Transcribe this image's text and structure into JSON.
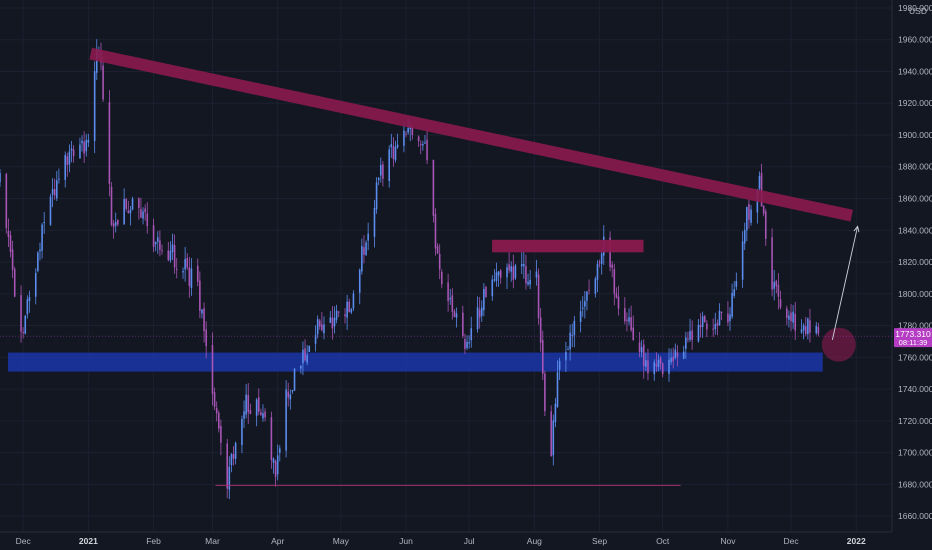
{
  "chart_data": {
    "type": "candlestick",
    "title": "",
    "currency_label": "USD",
    "y_axis": {
      "position": "right",
      "range": [
        1650,
        1985
      ],
      "ticks": [
        "1980.000",
        "1960.000",
        "1940.000",
        "1920.000",
        "1900.000",
        "1880.000",
        "1860.000",
        "1840.000",
        "1820.000",
        "1800.000",
        "1780.000",
        "1760.000",
        "1740.000",
        "1720.000",
        "1700.000",
        "1680.000",
        "1660.000"
      ],
      "tick_values": [
        1980,
        1960,
        1940,
        1920,
        1900,
        1880,
        1860,
        1840,
        1820,
        1800,
        1780,
        1760,
        1740,
        1720,
        1700,
        1680,
        1660
      ]
    },
    "x_axis": {
      "range": [
        "2020-11-20",
        "2022-01-18"
      ],
      "ticks": [
        {
          "label": "Dec",
          "date": "2020-12-01",
          "bold": false
        },
        {
          "label": "2021",
          "date": "2021-01-01",
          "bold": true
        },
        {
          "label": "Feb",
          "date": "2021-02-01",
          "bold": false
        },
        {
          "label": "Mar",
          "date": "2021-03-01",
          "bold": false
        },
        {
          "label": "Apr",
          "date": "2021-04-01",
          "bold": false
        },
        {
          "label": "May",
          "date": "2021-05-01",
          "bold": false
        },
        {
          "label": "Jun",
          "date": "2021-06-01",
          "bold": false
        },
        {
          "label": "Jul",
          "date": "2021-07-01",
          "bold": false
        },
        {
          "label": "Aug",
          "date": "2021-08-01",
          "bold": false
        },
        {
          "label": "Sep",
          "date": "2021-09-01",
          "bold": false
        },
        {
          "label": "Oct",
          "date": "2021-10-01",
          "bold": false
        },
        {
          "label": "Nov",
          "date": "2021-11-01",
          "bold": false
        },
        {
          "label": "Dec",
          "date": "2021-12-01",
          "bold": false
        },
        {
          "label": "2022",
          "date": "2022-01-01",
          "bold": true
        }
      ]
    },
    "price_series_anchors": [
      [
        "2020-11-20",
        1870
      ],
      [
        "2020-11-30",
        1776
      ],
      [
        "2020-12-10",
        1838
      ],
      [
        "2020-12-20",
        1880
      ],
      [
        "2020-12-31",
        1893
      ],
      [
        "2021-01-06",
        1958
      ],
      [
        "2021-01-12",
        1845
      ],
      [
        "2021-01-22",
        1860
      ],
      [
        "2021-02-01",
        1835
      ],
      [
        "2021-02-12",
        1822
      ],
      [
        "2021-02-22",
        1805
      ],
      [
        "2021-03-08",
        1680
      ],
      [
        "2021-03-16",
        1730
      ],
      [
        "2021-03-25",
        1728
      ],
      [
        "2021-03-31",
        1682
      ],
      [
        "2021-04-05",
        1735
      ],
      [
        "2021-04-20",
        1780
      ],
      [
        "2021-05-05",
        1790
      ],
      [
        "2021-05-20",
        1875
      ],
      [
        "2021-06-01",
        1905
      ],
      [
        "2021-06-10",
        1890
      ],
      [
        "2021-06-17",
        1812
      ],
      [
        "2021-06-29",
        1766
      ],
      [
        "2021-07-10",
        1806
      ],
      [
        "2021-07-20",
        1815
      ],
      [
        "2021-08-02",
        1812
      ],
      [
        "2021-08-08",
        1688
      ],
      [
        "2021-08-13",
        1760
      ],
      [
        "2021-08-25",
        1790
      ],
      [
        "2021-09-03",
        1832
      ],
      [
        "2021-09-10",
        1795
      ],
      [
        "2021-09-25",
        1750
      ],
      [
        "2021-10-05",
        1760
      ],
      [
        "2021-10-20",
        1780
      ],
      [
        "2021-11-01",
        1785
      ],
      [
        "2021-11-10",
        1850
      ],
      [
        "2021-11-16",
        1870
      ],
      [
        "2021-11-22",
        1805
      ],
      [
        "2021-12-01",
        1782
      ],
      [
        "2021-12-10",
        1780
      ],
      [
        "2021-12-14",
        1773
      ]
    ],
    "last_price": {
      "value": 1773.31,
      "label": "1773.310",
      "countdown": "08:11:39"
    },
    "annotations": [
      {
        "type": "trendline",
        "name": "descending-resistance",
        "points": [
          [
            "2021-01-04",
            1955
          ],
          [
            "2021-12-27",
            1853
          ]
        ],
        "color": "#8a1a4f"
      },
      {
        "type": "zone",
        "name": "support-zone",
        "x": [
          "2020-11-20",
          "2021-12-27"
        ],
        "y": [
          1751,
          1763
        ],
        "color": "#1b36a8"
      },
      {
        "type": "zone",
        "name": "range-resistance",
        "x": [
          "2021-07-10",
          "2021-09-20"
        ],
        "y": [
          1828,
          1834
        ],
        "color": "#8a1a4f"
      },
      {
        "type": "hline",
        "name": "march-low-line",
        "x": [
          "2021-03-01",
          "2021-09-30"
        ],
        "y": 1680,
        "color": "#a0306c"
      },
      {
        "type": "circle",
        "name": "current-price-circle",
        "x": "2021-12-18",
        "y": 1768,
        "color": "#8a1a4f"
      },
      {
        "type": "arrow",
        "name": "projection-arrow",
        "from": [
          "2021-12-14",
          1771
        ],
        "to": [
          "2021-12-26",
          1845
        ],
        "color": "#d1d4dc"
      }
    ],
    "colors": {
      "background": "#131722",
      "up": "#5b8def",
      "down": "#a855b5",
      "text": "#b2b5be",
      "price_tag": "#b43dc4"
    }
  }
}
